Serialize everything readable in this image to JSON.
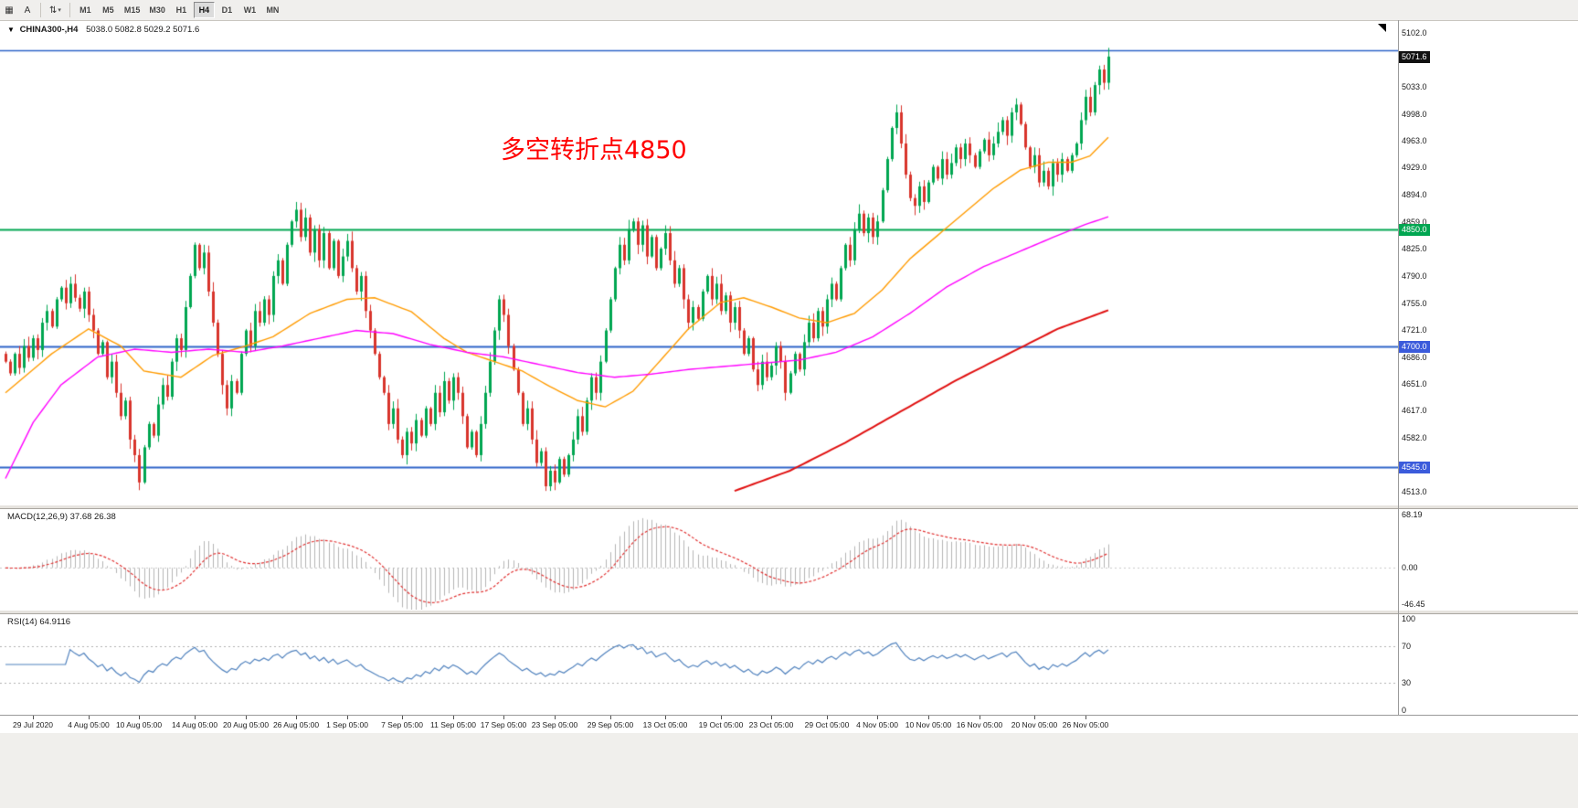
{
  "toolbar": {
    "chart_icon": "▦",
    "text_tool": "A",
    "cycle_icon": "⇅",
    "caret": "▾",
    "timeframes": [
      "M1",
      "M5",
      "M15",
      "M30",
      "H1",
      "H4",
      "D1",
      "W1",
      "MN"
    ],
    "active_timeframe": "H4"
  },
  "symbol_line": {
    "marker": "▼",
    "symbol": "CHINA300-,H4",
    "ohlc": "5038.0 5082.8 5029.2 5071.6"
  },
  "annotation": {
    "text": "多空转折点4850",
    "color": "#ff0000"
  },
  "chart_data": {
    "type": "candlestick",
    "symbol": "CHINA300-",
    "timeframe": "H4",
    "price_axis": {
      "min": 4513,
      "max": 5102,
      "ticks": [
        "5102.0",
        "5033.0",
        "4998.0",
        "4963.0",
        "4929.0",
        "4894.0",
        "4859.0",
        "4825.0",
        "4790.0",
        "4755.0",
        "4721.0",
        "4686.0",
        "4651.0",
        "4617.0",
        "4582.0",
        "4513.0"
      ]
    },
    "candles": {
      "bull_color": "#00a651",
      "bear_color": "#d8342c",
      "first_open": 4690,
      "last_ohlc": [
        5038.0,
        5082.8,
        5029.2,
        5071.6
      ],
      "closes": [
        4680,
        4665,
        4690,
        4672,
        4700,
        4685,
        4710,
        4695,
        4730,
        4745,
        4725,
        4760,
        4775,
        4755,
        4780,
        4762,
        4748,
        4770,
        4740,
        4720,
        4690,
        4705,
        4660,
        4680,
        4640,
        4610,
        4630,
        4580,
        4560,
        4525,
        4570,
        4600,
        4585,
        4625,
        4650,
        4635,
        4680,
        4710,
        4695,
        4750,
        4790,
        4830,
        4800,
        4820,
        4770,
        4730,
        4690,
        4650,
        4620,
        4655,
        4640,
        4690,
        4720,
        4700,
        4745,
        4730,
        4760,
        4740,
        4790,
        4810,
        4780,
        4830,
        4860,
        4875,
        4840,
        4865,
        4820,
        4850,
        4810,
        4845,
        4800,
        4835,
        4790,
        4815,
        4835,
        4800,
        4770,
        4790,
        4745,
        4720,
        4690,
        4660,
        4640,
        4600,
        4620,
        4580,
        4560,
        4590,
        4575,
        4605,
        4585,
        4620,
        4600,
        4640,
        4615,
        4655,
        4630,
        4660,
        4640,
        4610,
        4570,
        4590,
        4560,
        4600,
        4640,
        4680,
        4720,
        4760,
        4740,
        4700,
        4670,
        4640,
        4600,
        4620,
        4580,
        4550,
        4565,
        4520,
        4540,
        4525,
        4555,
        4535,
        4560,
        4580,
        4610,
        4590,
        4630,
        4660,
        4640,
        4680,
        4720,
        4760,
        4800,
        4830,
        4810,
        4850,
        4860,
        4830,
        4855,
        4815,
        4840,
        4800,
        4825,
        4845,
        4810,
        4780,
        4800,
        4760,
        4730,
        4750,
        4735,
        4770,
        4790,
        4760,
        4780,
        4745,
        4765,
        4730,
        4750,
        4720,
        4690,
        4710,
        4670,
        4650,
        4680,
        4660,
        4675,
        4700,
        4680,
        4640,
        4665,
        4690,
        4670,
        4705,
        4730,
        4710,
        4745,
        4725,
        4760,
        4780,
        4760,
        4800,
        4830,
        4810,
        4850,
        4870,
        4845,
        4865,
        4840,
        4860,
        4900,
        4940,
        4980,
        5000,
        4960,
        4920,
        4890,
        4880,
        4905,
        4885,
        4910,
        4930,
        4915,
        4940,
        4920,
        4935,
        4955,
        4940,
        4960,
        4945,
        4930,
        4950,
        4965,
        4945,
        4960,
        4975,
        4990,
        4970,
        5000,
        5010,
        4985,
        4955,
        4930,
        4945,
        4910,
        4925,
        4905,
        4935,
        4920,
        4940,
        4925,
        4945,
        4960,
        4990,
        5020,
        5000,
        5035,
        5055,
        5038,
        5071.6
      ]
    },
    "ma_lines": [
      {
        "name": "ma-fast-orange",
        "color": "#ff9b00",
        "width": 1.4,
        "anchors": [
          [
            0,
            4640
          ],
          [
            10,
            4690
          ],
          [
            18,
            4722
          ],
          [
            25,
            4700
          ],
          [
            30,
            4668
          ],
          [
            38,
            4660
          ],
          [
            45,
            4688
          ],
          [
            52,
            4700
          ],
          [
            58,
            4712
          ],
          [
            66,
            4742
          ],
          [
            74,
            4760
          ],
          [
            80,
            4762
          ],
          [
            88,
            4744
          ],
          [
            95,
            4710
          ],
          [
            100,
            4692
          ],
          [
            106,
            4680
          ],
          [
            112,
            4668
          ],
          [
            118,
            4648
          ],
          [
            124,
            4630
          ],
          [
            130,
            4622
          ],
          [
            136,
            4642
          ],
          [
            142,
            4682
          ],
          [
            148,
            4722
          ],
          [
            155,
            4756
          ],
          [
            160,
            4762
          ],
          [
            166,
            4750
          ],
          [
            172,
            4736
          ],
          [
            178,
            4730
          ],
          [
            184,
            4742
          ],
          [
            190,
            4772
          ],
          [
            196,
            4812
          ],
          [
            202,
            4842
          ],
          [
            208,
            4872
          ],
          [
            214,
            4902
          ],
          [
            220,
            4926
          ],
          [
            226,
            4936
          ],
          [
            231,
            4936
          ],
          [
            235,
            4944
          ],
          [
            239,
            4968
          ]
        ]
      },
      {
        "name": "ma-mid-magenta",
        "color": "#ff00ff",
        "width": 1.4,
        "anchors": [
          [
            0,
            4530
          ],
          [
            6,
            4602
          ],
          [
            12,
            4650
          ],
          [
            20,
            4686
          ],
          [
            28,
            4696
          ],
          [
            36,
            4692
          ],
          [
            44,
            4696
          ],
          [
            52,
            4692
          ],
          [
            60,
            4700
          ],
          [
            68,
            4710
          ],
          [
            76,
            4720
          ],
          [
            84,
            4716
          ],
          [
            92,
            4702
          ],
          [
            100,
            4692
          ],
          [
            108,
            4686
          ],
          [
            116,
            4676
          ],
          [
            124,
            4666
          ],
          [
            132,
            4660
          ],
          [
            140,
            4664
          ],
          [
            148,
            4670
          ],
          [
            156,
            4674
          ],
          [
            164,
            4678
          ],
          [
            172,
            4682
          ],
          [
            180,
            4692
          ],
          [
            188,
            4712
          ],
          [
            196,
            4742
          ],
          [
            204,
            4776
          ],
          [
            212,
            4802
          ],
          [
            220,
            4822
          ],
          [
            228,
            4842
          ],
          [
            234,
            4856
          ],
          [
            239,
            4866
          ]
        ]
      },
      {
        "name": "ma-slow-red",
        "color": "#e01010",
        "width": 2,
        "anchors": [
          [
            158,
            4514
          ],
          [
            170,
            4540
          ],
          [
            182,
            4576
          ],
          [
            194,
            4616
          ],
          [
            206,
            4656
          ],
          [
            218,
            4692
          ],
          [
            228,
            4722
          ],
          [
            239,
            4746
          ]
        ]
      }
    ],
    "hlines": [
      {
        "price": 5080,
        "color": "#2e64c8",
        "width": 1.5
      },
      {
        "price": 4850,
        "color": "#00a651",
        "width": 2
      },
      {
        "price": 4700,
        "color": "#2e64c8",
        "width": 2
      },
      {
        "price": 4545,
        "color": "#2e64c8",
        "width": 2
      }
    ],
    "badges": [
      {
        "price": 5071.6,
        "label": "5071.6",
        "bg": "#111111"
      },
      {
        "price": 4850,
        "label": "4850.0",
        "bg": "#00a651"
      },
      {
        "price": 4700,
        "label": "4700.0",
        "bg": "#3b5bdb"
      },
      {
        "price": 4545,
        "label": "4545.0",
        "bg": "#3b5bdb"
      }
    ],
    "time_labels": [
      [
        6,
        "29 Jul 2020"
      ],
      [
        18,
        "4 Aug 05:00"
      ],
      [
        29,
        "10 Aug 05:00"
      ],
      [
        41,
        "14 Aug 05:00"
      ],
      [
        52,
        "20 Aug 05:00"
      ],
      [
        63,
        "26 Aug 05:00"
      ],
      [
        74,
        "1 Sep 05:00"
      ],
      [
        86,
        "7 Sep 05:00"
      ],
      [
        97,
        "11 Sep 05:00"
      ],
      [
        108,
        "17 Sep 05:00"
      ],
      [
        119,
        "23 Sep 05:00"
      ],
      [
        131,
        "29 Sep 05:00"
      ],
      [
        143,
        "13 Oct 05:00"
      ],
      [
        155,
        "19 Oct 05:00"
      ],
      [
        166,
        "23 Oct 05:00"
      ],
      [
        178,
        "29 Oct 05:00"
      ],
      [
        189,
        "4 Nov 05:00"
      ],
      [
        200,
        "10 Nov 05:00"
      ],
      [
        211,
        "16 Nov 05:00"
      ],
      [
        223,
        "20 Nov 05:00"
      ],
      [
        234,
        "26 Nov 05:00"
      ]
    ]
  },
  "macd": {
    "label": "MACD(12,26,9) 37.68 26.38",
    "fast": 12,
    "slow": 26,
    "signal": 9,
    "axis_max": 68.19,
    "axis_min": -46.45,
    "axis_labels": [
      "68.19",
      "0.00",
      "-46.45"
    ],
    "hist_color": "#b4b4b4",
    "signal_color": "#e03030"
  },
  "rsi": {
    "label": "RSI(14) 64.9116",
    "period": 14,
    "axis_labels": [
      "100",
      "70",
      "30",
      "0"
    ],
    "levels": [
      70,
      30
    ],
    "line_color": "#4f81bd"
  }
}
